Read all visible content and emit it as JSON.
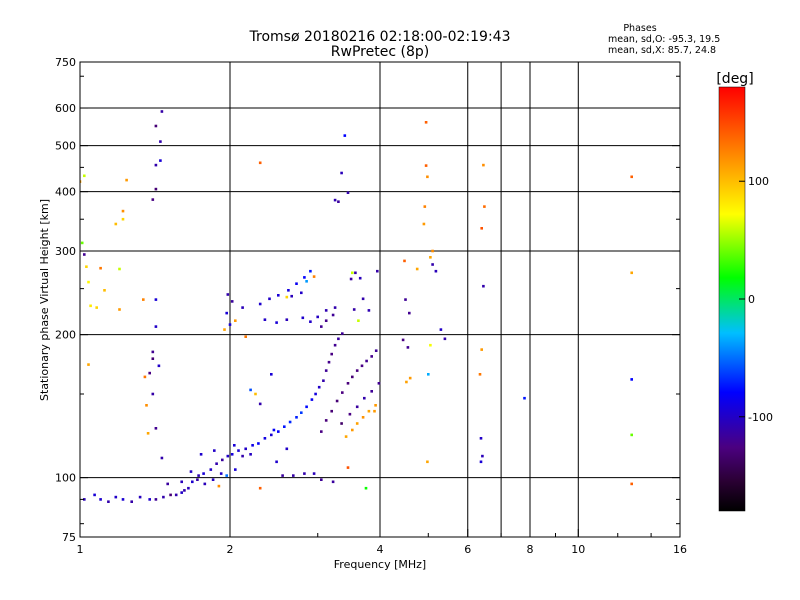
{
  "chart_data": {
    "type": "scatter",
    "title": "Tromsø 20180216 02:18:00-02:19:43",
    "subtitle": "RwPretec (8p)",
    "xlabel": "Frequency [MHz]",
    "ylabel": "Stationary phase Virtual Height [km]",
    "x_scale": "log",
    "y_scale": "log",
    "xlim": [
      1,
      16
    ],
    "ylim": [
      75,
      750
    ],
    "x_ticks": [
      1,
      2,
      4,
      6,
      8,
      10,
      16
    ],
    "x_tick_labels": [
      "1",
      "2",
      "4",
      "6",
      "8",
      "10",
      "16"
    ],
    "x_grid": [
      2,
      4,
      6,
      7,
      8,
      10,
      16
    ],
    "y_ticks": [
      75,
      100,
      200,
      300,
      400,
      500,
      600,
      750
    ],
    "y_tick_labels": [
      "75",
      "100",
      "200",
      "300",
      "400",
      "500",
      "600",
      "750"
    ],
    "y_grid": [
      100,
      200,
      300,
      400,
      500,
      600
    ],
    "grid": true,
    "stats": {
      "heading": "Phases",
      "line_o": "mean, sd,O: -95.3, 19.5",
      "line_x": "mean, sd,X: 85.7, 24.8"
    },
    "colorbar": {
      "label": "[deg]",
      "range": [
        -180,
        180
      ],
      "ticks": [
        100,
        0,
        -100
      ],
      "tick_labels": [
        "100",
        "0",
        "-100"
      ]
    },
    "points": [
      [
        1.02,
        90,
        -105
      ],
      [
        1.07,
        92,
        -95
      ],
      [
        1.1,
        90,
        -98
      ],
      [
        1.14,
        89,
        -110
      ],
      [
        1.18,
        91,
        -100
      ],
      [
        1.22,
        90,
        -96
      ],
      [
        1.27,
        89,
        -112
      ],
      [
        1.32,
        91,
        -104
      ],
      [
        1.38,
        90,
        -98
      ],
      [
        1.42,
        90,
        -118
      ],
      [
        1.47,
        91,
        -110
      ],
      [
        1.52,
        92,
        -130
      ],
      [
        1.56,
        92,
        -110
      ],
      [
        1.6,
        93,
        -100
      ],
      [
        1.65,
        95,
        -105
      ],
      [
        1.68,
        98,
        -98
      ],
      [
        1.72,
        99,
        -112
      ],
      [
        1.77,
        102,
        -95
      ],
      [
        1.83,
        104,
        -100
      ],
      [
        1.88,
        107,
        -110
      ],
      [
        1.93,
        109,
        -115
      ],
      [
        1.98,
        111,
        -100
      ],
      [
        2.02,
        112,
        -92
      ],
      [
        2.08,
        114,
        -95
      ],
      [
        2.15,
        115,
        -100
      ],
      [
        2.22,
        117,
        -88
      ],
      [
        2.28,
        118,
        -82
      ],
      [
        2.35,
        121,
        -90
      ],
      [
        2.42,
        123,
        -95
      ],
      [
        2.5,
        125,
        -82
      ],
      [
        2.57,
        128,
        -75
      ],
      [
        2.64,
        131,
        -70
      ],
      [
        2.72,
        134,
        -72
      ],
      [
        2.78,
        137,
        -65
      ],
      [
        2.85,
        141,
        -78
      ],
      [
        2.92,
        146,
        -85
      ],
      [
        2.97,
        150,
        -92
      ],
      [
        3.02,
        155,
        -100
      ],
      [
        3.08,
        160,
        -110
      ],
      [
        3.12,
        168,
        -118
      ],
      [
        3.16,
        175,
        -122
      ],
      [
        3.2,
        182,
        -125
      ],
      [
        3.25,
        190,
        -120
      ],
      [
        3.3,
        196,
        -115
      ],
      [
        3.36,
        201,
        -118
      ],
      [
        3.05,
        208,
        -120
      ],
      [
        3.12,
        214,
        -122
      ],
      [
        3.22,
        220,
        -118
      ],
      [
        3.05,
        125,
        -125
      ],
      [
        3.12,
        132,
        -128
      ],
      [
        3.2,
        138,
        -130
      ],
      [
        3.28,
        145,
        -130
      ],
      [
        3.36,
        151,
        -126
      ],
      [
        3.45,
        158,
        -128
      ],
      [
        3.52,
        163,
        -130
      ],
      [
        3.6,
        168,
        -126
      ],
      [
        3.68,
        172,
        -124
      ],
      [
        3.76,
        176,
        -120
      ],
      [
        3.85,
        180,
        -122
      ],
      [
        3.93,
        185,
        -118
      ],
      [
        3.35,
        130,
        -135
      ],
      [
        3.48,
        136,
        -125
      ],
      [
        3.6,
        141,
        -115
      ],
      [
        3.72,
        147,
        -110
      ],
      [
        3.85,
        152,
        -118
      ],
      [
        3.98,
        158,
        -120
      ],
      [
        3.42,
        122,
        110
      ],
      [
        3.52,
        126,
        115
      ],
      [
        3.6,
        130,
        112
      ],
      [
        3.7,
        134,
        118
      ],
      [
        3.8,
        138,
        110
      ],
      [
        3.92,
        142,
        115
      ],
      [
        2.55,
        101,
        -115
      ],
      [
        2.68,
        101,
        -112
      ],
      [
        2.82,
        102,
        -110
      ],
      [
        3.05,
        99,
        -118
      ],
      [
        3.22,
        98,
        -115
      ],
      [
        2.95,
        102,
        -105
      ],
      [
        1.92,
        102,
        -100
      ],
      [
        2.05,
        104,
        -95
      ],
      [
        2.12,
        111,
        -110
      ],
      [
        2.2,
        112,
        -102
      ],
      [
        2.48,
        108,
        -98
      ],
      [
        2.6,
        115,
        -100
      ],
      [
        1.78,
        97,
        -105
      ],
      [
        1.85,
        99,
        -102
      ],
      [
        1.62,
        94,
        -110
      ],
      [
        1.73,
        101,
        -108
      ],
      [
        1.9,
        96,
        120
      ],
      [
        2.3,
        95,
        140
      ],
      [
        1.97,
        101,
        -50
      ],
      [
        1.6,
        98,
        -105
      ],
      [
        1.67,
        103,
        -102
      ],
      [
        1.75,
        112,
        -98
      ],
      [
        1.86,
        114,
        -100
      ],
      [
        2.04,
        117,
        -95
      ],
      [
        2.2,
        153,
        -60
      ],
      [
        2.25,
        150,
        100
      ],
      [
        2.3,
        143,
        -110
      ],
      [
        2.42,
        165,
        -95
      ],
      [
        2.45,
        126,
        -82
      ],
      [
        1.98,
        243,
        -110
      ],
      [
        2.02,
        235,
        -115
      ],
      [
        2.12,
        228,
        -105
      ],
      [
        2.3,
        232,
        -98
      ],
      [
        2.4,
        238,
        -100
      ],
      [
        2.5,
        242,
        -95
      ],
      [
        2.62,
        248,
        -92
      ],
      [
        2.72,
        256,
        -85
      ],
      [
        2.82,
        264,
        -80
      ],
      [
        2.9,
        272,
        -75
      ],
      [
        2.78,
        245,
        -100
      ],
      [
        2.66,
        241,
        -105
      ],
      [
        2.35,
        215,
        -100
      ],
      [
        2.48,
        212,
        -95
      ],
      [
        2.6,
        215,
        -105
      ],
      [
        2.8,
        217,
        -98
      ],
      [
        2.9,
        213,
        -100
      ],
      [
        3.0,
        218,
        -102
      ],
      [
        3.12,
        225,
        -108
      ],
      [
        3.25,
        228,
        -110
      ],
      [
        3.5,
        262,
        -115
      ],
      [
        3.57,
        270,
        -110
      ],
      [
        3.65,
        263,
        -105
      ],
      [
        3.7,
        238,
        -110
      ],
      [
        3.55,
        226,
        -112
      ],
      [
        3.8,
        225,
        -108
      ],
      [
        3.95,
        272,
        -112
      ],
      [
        3.35,
        438,
        -105
      ],
      [
        3.3,
        381,
        -115
      ],
      [
        3.45,
        398,
        -110
      ],
      [
        3.25,
        384,
        -108
      ],
      [
        3.4,
        525,
        -80
      ],
      [
        4.5,
        237,
        -118
      ],
      [
        4.58,
        222,
        -120
      ],
      [
        4.45,
        195,
        -125
      ],
      [
        4.55,
        188,
        -120
      ],
      [
        4.6,
        162,
        115
      ],
      [
        4.52,
        159,
        112
      ],
      [
        4.48,
        286,
        140
      ],
      [
        4.75,
        275,
        110
      ],
      [
        5.05,
        291,
        110
      ],
      [
        5.1,
        300,
        120
      ],
      [
        5.1,
        281,
        -110
      ],
      [
        5.18,
        272,
        -105
      ],
      [
        5.05,
        190,
        70
      ],
      [
        5.0,
        165,
        -35
      ],
      [
        5.3,
        205,
        -100
      ],
      [
        5.4,
        196,
        -110
      ],
      [
        4.95,
        560,
        140
      ],
      [
        4.95,
        454,
        140
      ],
      [
        4.98,
        430,
        120
      ],
      [
        4.92,
        372,
        125
      ],
      [
        4.9,
        342,
        115
      ],
      [
        4.98,
        108,
        110
      ],
      [
        6.45,
        455,
        120
      ],
      [
        6.48,
        372,
        135
      ],
      [
        6.4,
        335,
        145
      ],
      [
        6.45,
        253,
        -110
      ],
      [
        6.4,
        186,
        115
      ],
      [
        6.35,
        165,
        130
      ],
      [
        6.38,
        121,
        -100
      ],
      [
        6.42,
        111,
        -105
      ],
      [
        6.38,
        108,
        -95
      ],
      [
        7.8,
        147,
        -75
      ],
      [
        12.8,
        430,
        140
      ],
      [
        12.8,
        270,
        110
      ],
      [
        12.8,
        161,
        -80
      ],
      [
        12.8,
        123,
        40
      ],
      [
        12.8,
        97,
        140
      ],
      [
        1.42,
        550,
        -130
      ],
      [
        1.46,
        590,
        -112
      ],
      [
        1.45,
        465,
        -95
      ],
      [
        1.42,
        455,
        -110
      ],
      [
        1.42,
        405,
        -130
      ],
      [
        1.4,
        385,
        -125
      ],
      [
        1.45,
        510,
        -110
      ],
      [
        1.42,
        237,
        -95
      ],
      [
        1.42,
        208,
        -100
      ],
      [
        1.4,
        184,
        -120
      ],
      [
        1.4,
        178,
        -130
      ],
      [
        1.38,
        166,
        -125
      ],
      [
        1.44,
        172,
        -100
      ],
      [
        1.4,
        150,
        -112
      ],
      [
        1.42,
        127,
        -120
      ],
      [
        1.46,
        110,
        -110
      ],
      [
        1.5,
        97,
        -115
      ],
      [
        1.34,
        237,
        125
      ],
      [
        1.35,
        163,
        130
      ],
      [
        1.36,
        142,
        120
      ],
      [
        1.37,
        124,
        110
      ],
      [
        1.0,
        420,
        110
      ],
      [
        1.02,
        432,
        60
      ],
      [
        1.01,
        312,
        40
      ],
      [
        1.02,
        295,
        -120
      ],
      [
        1.03,
        278,
        90
      ],
      [
        1.04,
        258,
        75
      ],
      [
        1.05,
        230,
        80
      ],
      [
        1.08,
        228,
        90
      ],
      [
        1.1,
        276,
        130
      ],
      [
        1.2,
        275,
        60
      ],
      [
        1.22,
        364,
        120
      ],
      [
        1.22,
        350,
        90
      ],
      [
        1.12,
        248,
        100
      ],
      [
        1.2,
        226,
        115
      ],
      [
        1.24,
        423,
        115
      ],
      [
        1.18,
        342,
        100
      ],
      [
        1.04,
        173,
        110
      ],
      [
        2.3,
        460,
        140
      ],
      [
        1.95,
        205,
        110
      ],
      [
        2.0,
        210,
        -95
      ],
      [
        2.05,
        214,
        115
      ],
      [
        2.15,
        198,
        130
      ],
      [
        2.6,
        240,
        90
      ],
      [
        2.85,
        259,
        -40
      ],
      [
        2.95,
        265,
        125
      ],
      [
        1.97,
        222,
        -95
      ],
      [
        3.62,
        214,
        60
      ],
      [
        3.52,
        270,
        60
      ],
      [
        3.9,
        138,
        115
      ],
      [
        3.75,
        95,
        20
      ],
      [
        3.45,
        105,
        145
      ]
    ]
  }
}
